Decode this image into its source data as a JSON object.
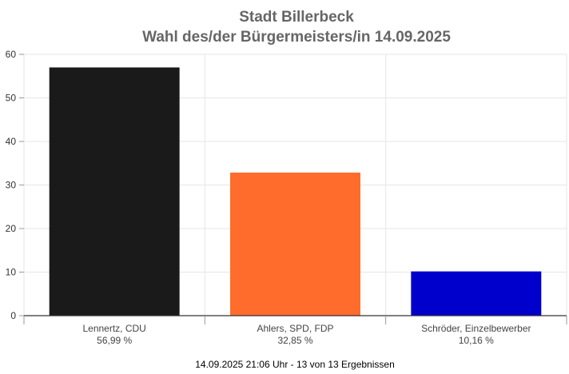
{
  "chart_data": {
    "type": "bar",
    "title": "Stadt Billerbeck",
    "subtitle": "Wahl des/der Bürgermeisters/in 14.09.2025",
    "categories": [
      "Lennertz, CDU",
      "Ahlers, SPD, FDP",
      "Schröder, Einzelbewerber"
    ],
    "values": [
      56.99,
      32.85,
      10.16
    ],
    "value_labels": [
      "56,99 %",
      "32,85 %",
      "10,16 %"
    ],
    "colors": [
      "#1a1a1a",
      "#ff6c2c",
      "#0000cc"
    ],
    "ylim": [
      0,
      60
    ],
    "yticks": [
      0,
      10,
      20,
      30,
      40,
      50,
      60
    ],
    "ytick_labels": [
      "0",
      "10",
      "20",
      "30",
      "40",
      "50",
      "60"
    ],
    "grid": true,
    "legend": "none",
    "footer": "14.09.2025 21:06 Uhr - 13 von 13 Ergebnissen"
  }
}
